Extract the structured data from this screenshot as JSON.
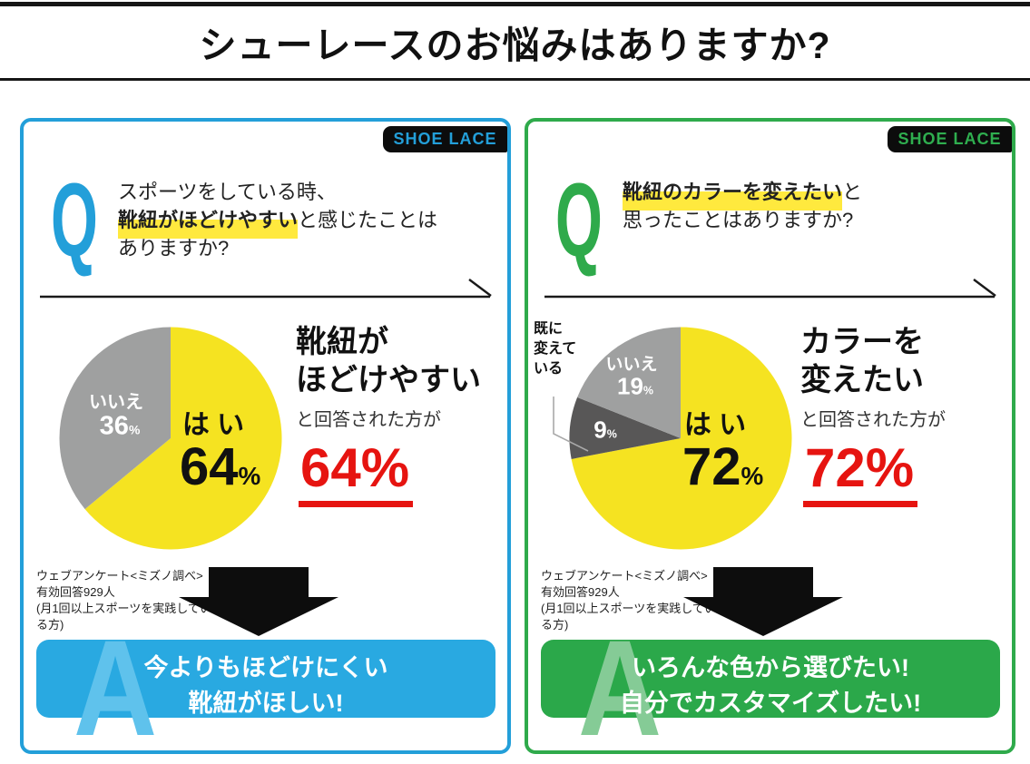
{
  "page": {
    "title": "シューレースのお悩みはありますか?"
  },
  "colors": {
    "blue_accent": "#239fd9",
    "blue_light": "#5fc2ec",
    "green_accent": "#2faa4b",
    "green_light": "#85cb96",
    "pie_yellow": "#f5e321",
    "pie_gray": "#9fa0a0",
    "pie_dark_gray": "#585757",
    "highlight_yellow": "#ffe93e",
    "result_red": "#e61410",
    "badge_bg": "#0c0c0c"
  },
  "panels": [
    {
      "badge": "SHOE LACE",
      "q_mark": "Q",
      "question_lines": [
        [
          {
            "t": "スポーツをしている時、",
            "hl": false
          }
        ],
        [
          {
            "t": "靴紐がほどけやすい",
            "hl": true
          },
          {
            "t": "と感じたことは",
            "hl": false
          }
        ],
        [
          {
            "t": "ありますか?",
            "hl": false
          }
        ]
      ],
      "pie_labels": {
        "no_label": "いいえ",
        "no_value": "36",
        "no_pct": "%",
        "yes_label": "は い",
        "yes_value": "64",
        "yes_pct": "%"
      },
      "result": {
        "line1": "靴紐が",
        "line2": "ほどけやすい",
        "sub": "と回答された方が",
        "big_value": "64",
        "big_pct": "%"
      },
      "footnote": [
        "ウェブアンケート<ミズノ調べ>",
        "有効回答929人",
        "(月1回以上スポーツを実践してい",
        "る方)"
      ],
      "answer": {
        "a_mark": "A",
        "lines": [
          "今よりもほどけにくい",
          "靴紐がほしい!"
        ]
      }
    },
    {
      "badge": "SHOE LACE",
      "q_mark": "Q",
      "question_lines": [
        [
          {
            "t": "靴紐のカラーを変えたい",
            "hl": true
          },
          {
            "t": "と",
            "hl": false
          }
        ],
        [
          {
            "t": "思ったことはありますか?",
            "hl": false
          }
        ]
      ],
      "pie_labels": {
        "no_label": "いいえ",
        "no_value": "19",
        "no_pct": "%",
        "already_label_lines": [
          "既に",
          "変えて",
          "いる"
        ],
        "already_value": "9",
        "already_pct": "%",
        "yes_label": "は い",
        "yes_value": "72",
        "yes_pct": "%"
      },
      "result": {
        "line1": "カラーを",
        "line2": "変えたい",
        "sub": "と回答された方が",
        "big_value": "72",
        "big_pct": "%"
      },
      "footnote": [
        "ウェブアンケート<ミズノ調べ>",
        "有効回答929人",
        "(月1回以上スポーツを実践してい",
        "る方)"
      ],
      "answer": {
        "a_mark": "A",
        "lines": [
          "いろんな色から選びたい!",
          "自分でカスタマイズしたい!"
        ]
      }
    }
  ],
  "chart_data": [
    {
      "type": "pie",
      "title": "スポーツをしている時、靴紐がほどけやすいと感じたことはありますか?",
      "labels": [
        "はい",
        "いいえ"
      ],
      "values": [
        64,
        36
      ],
      "colors": [
        "#f5e321",
        "#9fa0a0"
      ],
      "start_angle": "top",
      "direction": "clockwise",
      "legend_position": "none"
    },
    {
      "type": "pie",
      "title": "靴紐のカラーを変えたいと思ったことはありますか?",
      "labels": [
        "はい",
        "既に変えている",
        "いいえ"
      ],
      "values": [
        72,
        9,
        19
      ],
      "colors": [
        "#f5e321",
        "#585757",
        "#9fa0a0"
      ],
      "start_angle": "top",
      "direction": "clockwise",
      "legend_position": "none"
    }
  ]
}
